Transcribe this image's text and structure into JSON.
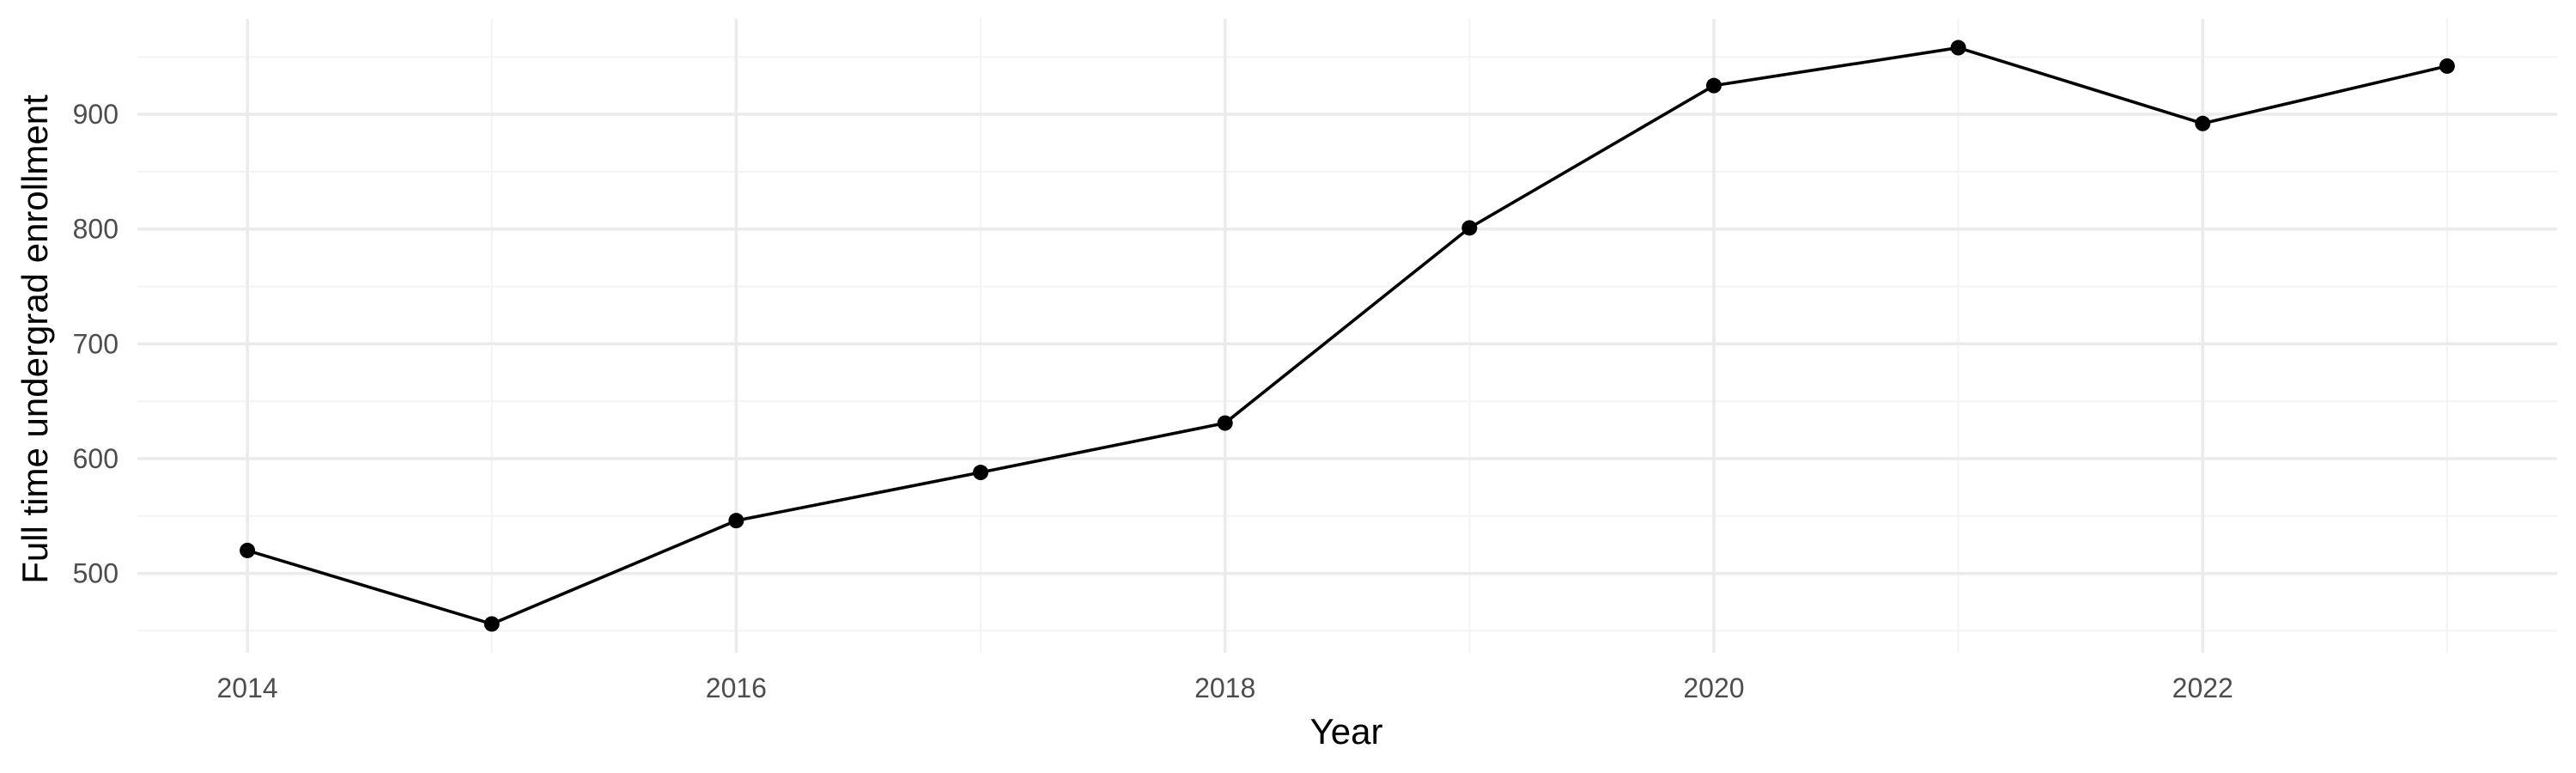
{
  "chart_data": {
    "type": "line",
    "title": "",
    "xlabel": "Year",
    "ylabel": "Full time undergrad enrollment",
    "x": [
      2014,
      2015,
      2016,
      2017,
      2018,
      2019,
      2020,
      2021,
      2022,
      2023
    ],
    "series": [
      {
        "values": [
          520,
          456,
          546,
          588,
          631,
          801,
          925,
          958,
          892,
          942
        ]
      }
    ],
    "xticks": [
      2014,
      2016,
      2018,
      2020,
      2022
    ],
    "xtick_labels": [
      "2014",
      "2016",
      "2018",
      "2020",
      "2022"
    ],
    "yticks": [
      500,
      600,
      700,
      800,
      900
    ],
    "ytick_labels": [
      "500",
      "600",
      "700",
      "800",
      "900"
    ],
    "xlim": [
      2013.55,
      2023.45
    ],
    "ylim": [
      430.9,
      983.1
    ],
    "grid": true,
    "legend": "none",
    "line_color": "#000000",
    "grid_color": "#ebebeb"
  }
}
